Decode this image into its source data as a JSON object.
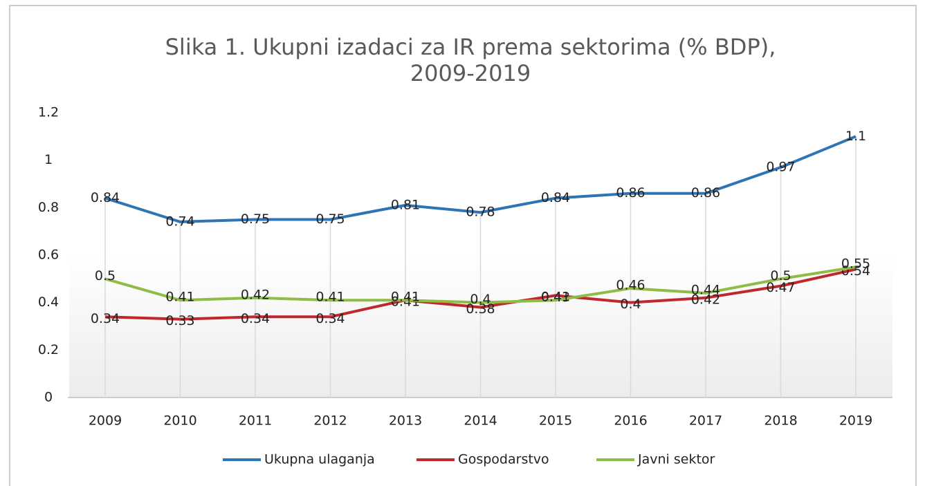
{
  "chart_data": {
    "type": "line",
    "title": [
      "Slika 1.  Ukupni izadaci za IR prema sektorima (% BDP),",
      "2009-2019"
    ],
    "categories": [
      "2009",
      "2010",
      "2011",
      "2012",
      "2013",
      "2014",
      "2015",
      "2016",
      "2017",
      "2018",
      "2019"
    ],
    "series": [
      {
        "name": "Ukupna ulaganja",
        "color": "#2e75b6",
        "values": [
          0.84,
          0.74,
          0.75,
          0.75,
          0.81,
          0.78,
          0.84,
          0.86,
          0.86,
          0.97,
          1.1
        ]
      },
      {
        "name": "Gospodarstvo",
        "color": "#c0282d",
        "values": [
          0.34,
          0.33,
          0.34,
          0.34,
          0.41,
          0.38,
          0.43,
          0.4,
          0.42,
          0.47,
          0.54
        ]
      },
      {
        "name": "Javni sektor",
        "color": "#8fbc45",
        "values": [
          0.5,
          0.41,
          0.42,
          0.41,
          0.41,
          0.4,
          0.41,
          0.46,
          0.44,
          0.5,
          0.55
        ]
      }
    ],
    "ylim": [
      0,
      1.2
    ],
    "yticks": [
      0,
      0.2,
      0.4,
      0.6,
      0.8,
      1,
      1.2
    ],
    "grid": "vertical",
    "legend": "bottom"
  }
}
